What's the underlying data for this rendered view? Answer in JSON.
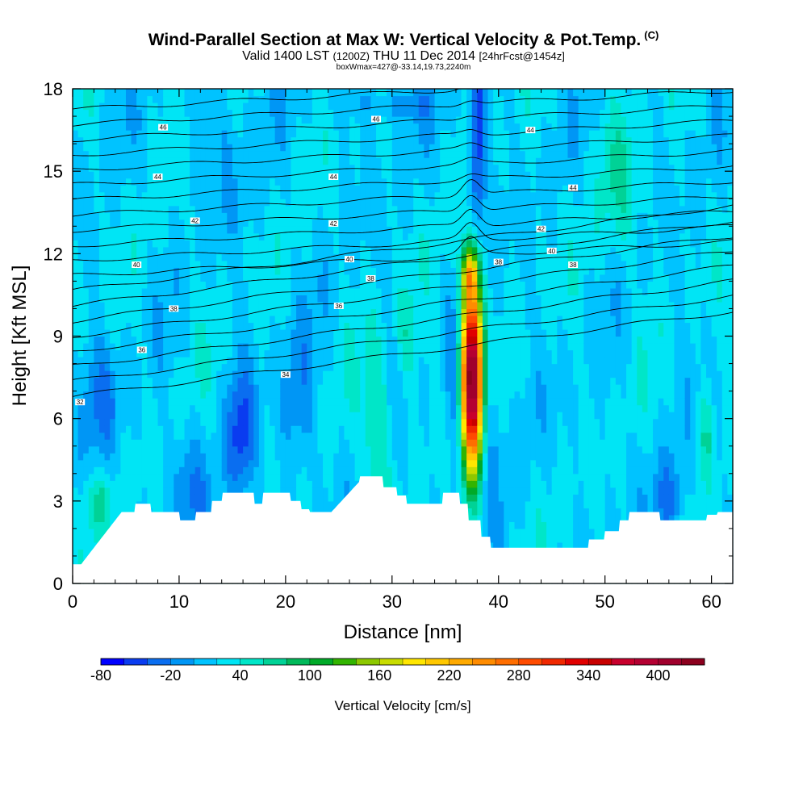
{
  "title": {
    "main": "Wind-Parallel Section at Max W: Vertical Velocity & Pot.Temp.",
    "copyright": "(C)",
    "valid_prefix": "Valid 1400 LST",
    "valid_utc": "(1200Z)",
    "valid_date": "THU 11 Dec 2014",
    "forecast": "[24hrFcst@1454z]",
    "boxmax": "boxWmax=427@-33.14,19.73,2240m"
  },
  "chart_data": {
    "type": "heatmap",
    "xlabel": "Distance [nm]",
    "ylabel": "Height [Kft MSL]",
    "xlim": [
      0,
      62
    ],
    "ylim": [
      0,
      18
    ],
    "xticks": [
      "0",
      "10",
      "20",
      "30",
      "40",
      "50",
      "60"
    ],
    "yticks": [
      "0",
      "3",
      "6",
      "9",
      "12",
      "15",
      "18"
    ],
    "colorbar": {
      "title": "Vertical Velocity [cm/s]",
      "min": -80,
      "max": 440,
      "step": 20,
      "tick_labels": [
        "-80",
        "-20",
        "40",
        "100",
        "160",
        "220",
        "280",
        "340",
        "400"
      ],
      "colors": [
        "#0000ff",
        "#0a3cf0",
        "#0a6ef0",
        "#0096f5",
        "#00c3ff",
        "#00e5f5",
        "#00e6c8",
        "#00d296",
        "#00b95a",
        "#00aa28",
        "#32b400",
        "#8cc800",
        "#c8dc00",
        "#ffe600",
        "#ffc800",
        "#ffaa00",
        "#ff8c00",
        "#ff6e00",
        "#ff4b00",
        "#f02800",
        "#e10000",
        "#c80000",
        "#c8002d",
        "#b40032",
        "#a0002d",
        "#8c001e"
      ]
    },
    "updraft_max": {
      "value": 427,
      "x_nm": 37.5,
      "height_kft": 8
    },
    "theta_contours_label": "Potential temperature contours",
    "contour_labels": [
      {
        "text": "46",
        "x": 8.5,
        "y": 16.6
      },
      {
        "text": "46",
        "x": 28.5,
        "y": 16.9
      },
      {
        "text": "44",
        "x": 8,
        "y": 14.8
      },
      {
        "text": "44",
        "x": 24.5,
        "y": 14.8
      },
      {
        "text": "44",
        "x": 43,
        "y": 16.5
      },
      {
        "text": "44",
        "x": 47,
        "y": 14.4
      },
      {
        "text": "42",
        "x": 11.5,
        "y": 13.2
      },
      {
        "text": "42",
        "x": 24.5,
        "y": 13.1
      },
      {
        "text": "42",
        "x": 44,
        "y": 12.9
      },
      {
        "text": "40",
        "x": 6,
        "y": 11.6
      },
      {
        "text": "40",
        "x": 26,
        "y": 11.8
      },
      {
        "text": "40",
        "x": 45,
        "y": 12.1
      },
      {
        "text": "38",
        "x": 9.5,
        "y": 10.0
      },
      {
        "text": "38",
        "x": 28,
        "y": 11.1
      },
      {
        "text": "38",
        "x": 40,
        "y": 11.7
      },
      {
        "text": "38",
        "x": 47,
        "y": 11.6
      },
      {
        "text": "36",
        "x": 6.5,
        "y": 8.5
      },
      {
        "text": "36",
        "x": 25,
        "y": 10.1
      },
      {
        "text": "34",
        "x": 20,
        "y": 7.6
      },
      {
        "text": "32",
        "x": 0.7,
        "y": 6.6
      }
    ]
  }
}
